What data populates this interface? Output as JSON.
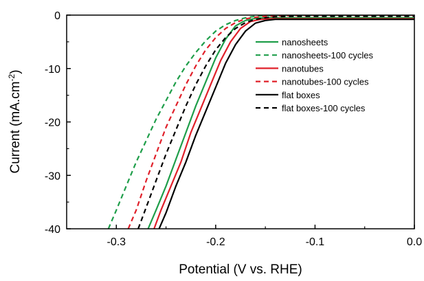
{
  "chart_data": {
    "type": "line",
    "xlabel": "Potential (V vs. RHE)",
    "ylabel": {
      "prefix": "Current (mA.cm",
      "sup": "-2",
      "suffix": ")"
    },
    "xlim": [
      -0.35,
      0.0
    ],
    "ylim": [
      -40,
      0
    ],
    "x_ticks": [
      -0.3,
      -0.2,
      -0.1,
      0.0
    ],
    "x_tick_labels": [
      "-0.3",
      "-0.2",
      "-0.1",
      "0.0"
    ],
    "y_ticks": [
      0,
      -10,
      -20,
      -30,
      -40
    ],
    "y_tick_labels": [
      "0",
      "-10",
      "-20",
      "-30",
      "-40"
    ],
    "grid": false,
    "legend_position": "top-right",
    "series": [
      {
        "name": "nanosheets",
        "color": "#1f9e4a",
        "style": "solid",
        "x": [
          -0.268,
          -0.26,
          -0.25,
          -0.24,
          -0.23,
          -0.22,
          -0.21,
          -0.2,
          -0.19,
          -0.18,
          -0.17,
          -0.16,
          -0.15,
          -0.1,
          -0.05,
          0.0
        ],
        "y": [
          -40,
          -36.5,
          -32.0,
          -27.0,
          -22.0,
          -17.0,
          -12.5,
          -8.0,
          -4.5,
          -2.0,
          -1.0,
          -0.6,
          -0.5,
          -0.5,
          -0.5,
          -0.5
        ]
      },
      {
        "name": "nanosheets-100 cycles",
        "color": "#1f9e4a",
        "style": "dashed",
        "x": [
          -0.308,
          -0.3,
          -0.29,
          -0.28,
          -0.27,
          -0.26,
          -0.25,
          -0.24,
          -0.23,
          -0.22,
          -0.21,
          -0.2,
          -0.19,
          -0.18,
          -0.17,
          -0.16,
          -0.14,
          -0.1,
          -0.05,
          0.0
        ],
        "y": [
          -40,
          -36.5,
          -32.0,
          -27.5,
          -23.5,
          -19.5,
          -16.0,
          -12.5,
          -9.5,
          -7.0,
          -4.8,
          -3.0,
          -1.8,
          -1.0,
          -0.5,
          -0.2,
          0.0,
          0.0,
          0.0,
          0.0
        ]
      },
      {
        "name": "nanotubes",
        "color": "#e0202a",
        "style": "solid",
        "x": [
          -0.262,
          -0.255,
          -0.245,
          -0.235,
          -0.225,
          -0.215,
          -0.205,
          -0.195,
          -0.185,
          -0.175,
          -0.165,
          -0.155,
          -0.145,
          -0.1,
          -0.05,
          0.0
        ],
        "y": [
          -40,
          -36.5,
          -32.0,
          -27.5,
          -22.0,
          -17.5,
          -13.0,
          -8.5,
          -5.0,
          -2.5,
          -1.2,
          -0.8,
          -0.7,
          -0.7,
          -0.7,
          -0.7
        ]
      },
      {
        "name": "nanotubes-100 cycles",
        "color": "#e0202a",
        "style": "dashed",
        "x": [
          -0.288,
          -0.28,
          -0.27,
          -0.26,
          -0.25,
          -0.24,
          -0.23,
          -0.22,
          -0.21,
          -0.2,
          -0.19,
          -0.18,
          -0.17,
          -0.16,
          -0.15,
          -0.13,
          -0.1,
          -0.05,
          0.0
        ],
        "y": [
          -40,
          -36.5,
          -31.0,
          -26.0,
          -21.0,
          -17.0,
          -13.0,
          -9.5,
          -6.5,
          -4.2,
          -2.5,
          -1.4,
          -0.7,
          -0.4,
          -0.2,
          -0.1,
          0.0,
          0.0,
          0.0
        ]
      },
      {
        "name": "flat boxes",
        "color": "#000000",
        "style": "solid",
        "x": [
          -0.257,
          -0.25,
          -0.24,
          -0.23,
          -0.22,
          -0.21,
          -0.2,
          -0.19,
          -0.18,
          -0.17,
          -0.16,
          -0.15,
          -0.14,
          -0.1,
          -0.05,
          0.0
        ],
        "y": [
          -40,
          -37.0,
          -32.0,
          -27.5,
          -22.5,
          -18.0,
          -13.5,
          -9.0,
          -5.5,
          -3.0,
          -1.5,
          -1.0,
          -0.8,
          -0.8,
          -0.8,
          -0.8
        ]
      },
      {
        "name": "flat boxes-100 cycles",
        "color": "#000000",
        "style": "dashed",
        "x": [
          -0.278,
          -0.27,
          -0.26,
          -0.25,
          -0.24,
          -0.23,
          -0.22,
          -0.21,
          -0.2,
          -0.19,
          -0.18,
          -0.17,
          -0.16,
          -0.15,
          -0.14,
          -0.12,
          -0.1,
          -0.05,
          0.0
        ],
        "y": [
          -40,
          -36.0,
          -31.0,
          -26.0,
          -21.5,
          -17.0,
          -13.0,
          -9.5,
          -6.5,
          -4.2,
          -2.5,
          -1.4,
          -0.8,
          -0.5,
          -0.3,
          -0.2,
          -0.2,
          -0.2,
          -0.2
        ]
      }
    ]
  }
}
